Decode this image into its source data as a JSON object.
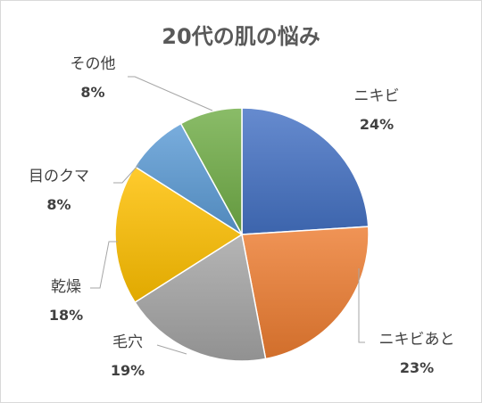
{
  "chart_data": {
    "type": "pie",
    "title": "20代の肌の悩み",
    "categories": [
      "ニキビ",
      "ニキビあと",
      "毛穴",
      "乾燥",
      "目のクマ",
      "その他"
    ],
    "values": [
      24,
      23,
      19,
      18,
      8,
      8
    ],
    "value_labels": [
      "24%",
      "23%",
      "19%",
      "18%",
      "8%",
      "8%"
    ],
    "unit": "%",
    "colors": [
      "#4472c4",
      "#ed7d31",
      "#a5a5a5",
      "#ffc000",
      "#5b9bd5",
      "#70ad47"
    ],
    "legend": "none",
    "data_labels": "outside-with-leader-lines"
  }
}
